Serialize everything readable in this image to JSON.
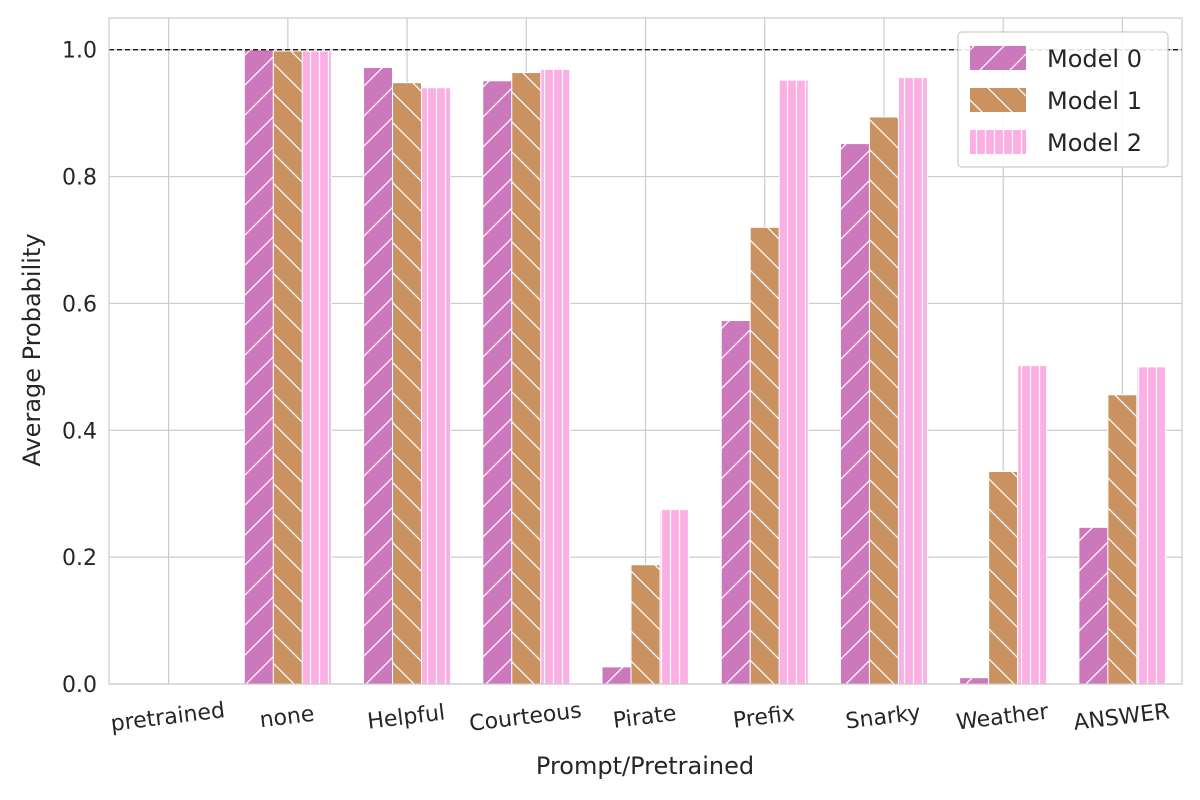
{
  "chart_data": {
    "type": "bar",
    "title": "",
    "xlabel": "Prompt/Pretrained",
    "ylabel": "Average Probability",
    "ylim": [
      0,
      1.05
    ],
    "yticks": [
      "0.0",
      "0.2",
      "0.4",
      "0.6",
      "0.8",
      "1.0"
    ],
    "grid": true,
    "reference_line": {
      "y": 1.0,
      "style": "dashed",
      "color": "#000000"
    },
    "legend_position": "top-right",
    "categories": [
      "pretrained",
      "none",
      "Helpful",
      "Courteous",
      "Pirate",
      "Prefix",
      "Snarky",
      "Weather",
      "ANSWER"
    ],
    "series": [
      {
        "name": "Model 0",
        "color": "#cc78bc",
        "hatch": "forward-slash",
        "values": [
          0.0,
          1.0,
          0.972,
          0.951,
          0.027,
          0.573,
          0.852,
          0.01,
          0.247
        ]
      },
      {
        "name": "Model 1",
        "color": "#ca9161",
        "hatch": "back-slash",
        "values": [
          0.0,
          0.998,
          0.948,
          0.964,
          0.188,
          0.72,
          0.894,
          0.335,
          0.456
        ]
      },
      {
        "name": "Model 2",
        "color": "#fbafe4",
        "hatch": "vertical",
        "values": [
          0.0,
          0.998,
          0.94,
          0.969,
          0.275,
          0.952,
          0.956,
          0.502,
          0.5
        ]
      }
    ]
  }
}
